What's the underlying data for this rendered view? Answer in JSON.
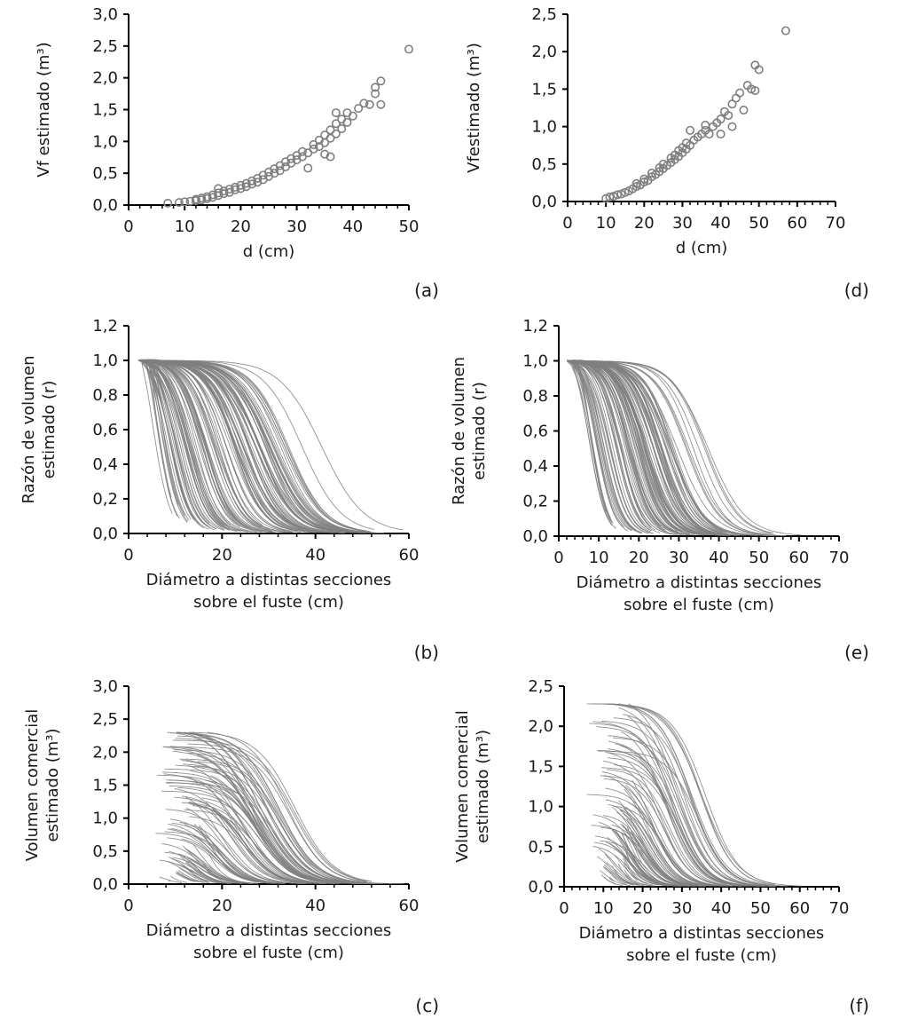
{
  "chart_data": [
    {
      "id": "a",
      "type": "scatter",
      "panel_label": "(a)",
      "xlabel": "d (cm)",
      "ylabel_lines": [
        "Vf estimado (m³)"
      ],
      "xlim": [
        0,
        50
      ],
      "ylim": [
        0,
        3.0
      ],
      "xticks": [
        "0",
        "10",
        "20",
        "30",
        "40",
        "50"
      ],
      "yticks": [
        "0,0",
        "0,5",
        "1,0",
        "1,5",
        "2,0",
        "2,5",
        "3,0"
      ],
      "points": [
        [
          7,
          0.03
        ],
        [
          9,
          0.04
        ],
        [
          10,
          0.05
        ],
        [
          11,
          0.06
        ],
        [
          12,
          0.07
        ],
        [
          12,
          0.09
        ],
        [
          13,
          0.08
        ],
        [
          13,
          0.11
        ],
        [
          14,
          0.1
        ],
        [
          14,
          0.13
        ],
        [
          15,
          0.12
        ],
        [
          15,
          0.16
        ],
        [
          16,
          0.15
        ],
        [
          16,
          0.19
        ],
        [
          16,
          0.26
        ],
        [
          17,
          0.18
        ],
        [
          17,
          0.22
        ],
        [
          18,
          0.2
        ],
        [
          18,
          0.25
        ],
        [
          19,
          0.24
        ],
        [
          19,
          0.28
        ],
        [
          20,
          0.26
        ],
        [
          20,
          0.31
        ],
        [
          21,
          0.29
        ],
        [
          21,
          0.34
        ],
        [
          22,
          0.33
        ],
        [
          22,
          0.38
        ],
        [
          23,
          0.36
        ],
        [
          23,
          0.42
        ],
        [
          24,
          0.4
        ],
        [
          24,
          0.47
        ],
        [
          25,
          0.45
        ],
        [
          25,
          0.52
        ],
        [
          26,
          0.5
        ],
        [
          26,
          0.57
        ],
        [
          27,
          0.54
        ],
        [
          27,
          0.62
        ],
        [
          28,
          0.6
        ],
        [
          28,
          0.68
        ],
        [
          29,
          0.66
        ],
        [
          29,
          0.73
        ],
        [
          30,
          0.71
        ],
        [
          30,
          0.78
        ],
        [
          31,
          0.76
        ],
        [
          31,
          0.84
        ],
        [
          32,
          0.58
        ],
        [
          32,
          0.82
        ],
        [
          33,
          0.88
        ],
        [
          33,
          0.95
        ],
        [
          34,
          0.92
        ],
        [
          34,
          1.02
        ],
        [
          35,
          0.98
        ],
        [
          35,
          1.1
        ],
        [
          35,
          0.8
        ],
        [
          36,
          1.05
        ],
        [
          36,
          1.18
        ],
        [
          36,
          0.76
        ],
        [
          37,
          1.12
        ],
        [
          37,
          1.28
        ],
        [
          37,
          1.45
        ],
        [
          38,
          1.2
        ],
        [
          38,
          1.35
        ],
        [
          39,
          1.3
        ],
        [
          39,
          1.45
        ],
        [
          40,
          1.4
        ],
        [
          41,
          1.52
        ],
        [
          42,
          1.6
        ],
        [
          43,
          1.58
        ],
        [
          44,
          1.75
        ],
        [
          44,
          1.85
        ],
        [
          45,
          1.58
        ],
        [
          45,
          1.95
        ],
        [
          50,
          2.45
        ]
      ]
    },
    {
      "id": "d",
      "type": "scatter",
      "panel_label": "(d)",
      "xlabel": "d (cm)",
      "ylabel_lines": [
        "Vfestimado (m³)"
      ],
      "xlim": [
        0,
        70
      ],
      "ylim": [
        0,
        2.5
      ],
      "xticks": [
        "0",
        "10",
        "20",
        "30",
        "40",
        "50",
        "60",
        "70"
      ],
      "yticks": [
        "0,0",
        "0,5",
        "1,0",
        "1,5",
        "2,0",
        "2,5"
      ],
      "points": [
        [
          10,
          0.04
        ],
        [
          11,
          0.06
        ],
        [
          12,
          0.07
        ],
        [
          13,
          0.09
        ],
        [
          14,
          0.1
        ],
        [
          15,
          0.12
        ],
        [
          16,
          0.14
        ],
        [
          17,
          0.17
        ],
        [
          18,
          0.2
        ],
        [
          18,
          0.24
        ],
        [
          19,
          0.22
        ],
        [
          20,
          0.26
        ],
        [
          20,
          0.3
        ],
        [
          21,
          0.28
        ],
        [
          22,
          0.33
        ],
        [
          22,
          0.38
        ],
        [
          23,
          0.36
        ],
        [
          24,
          0.4
        ],
        [
          24,
          0.45
        ],
        [
          25,
          0.44
        ],
        [
          25,
          0.5
        ],
        [
          26,
          0.48
        ],
        [
          27,
          0.52
        ],
        [
          27,
          0.58
        ],
        [
          28,
          0.56
        ],
        [
          28,
          0.62
        ],
        [
          29,
          0.6
        ],
        [
          29,
          0.68
        ],
        [
          30,
          0.65
        ],
        [
          30,
          0.72
        ],
        [
          31,
          0.7
        ],
        [
          31,
          0.78
        ],
        [
          32,
          0.75
        ],
        [
          32,
          0.95
        ],
        [
          33,
          0.82
        ],
        [
          34,
          0.86
        ],
        [
          35,
          0.9
        ],
        [
          36,
          0.95
        ],
        [
          36,
          1.02
        ],
        [
          37,
          0.9
        ],
        [
          38,
          1.0
        ],
        [
          39,
          1.05
        ],
        [
          40,
          1.1
        ],
        [
          40,
          0.9
        ],
        [
          41,
          1.2
        ],
        [
          42,
          1.15
        ],
        [
          43,
          1.3
        ],
        [
          43,
          1.0
        ],
        [
          44,
          1.38
        ],
        [
          45,
          1.45
        ],
        [
          46,
          1.22
        ],
        [
          47,
          1.55
        ],
        [
          48,
          1.5
        ],
        [
          49,
          1.82
        ],
        [
          49,
          1.48
        ],
        [
          50,
          1.76
        ],
        [
          57,
          2.28
        ]
      ]
    },
    {
      "id": "b",
      "type": "line",
      "panel_label": "(b)",
      "xlabel_lines": [
        "Diámetro a distintas secciones",
        "sobre el fuste (cm)"
      ],
      "ylabel_lines": [
        "Razón de volumen",
        "estimado (r)"
      ],
      "xlim": [
        0,
        60
      ],
      "ylim": [
        0,
        1.2
      ],
      "xticks": [
        "0",
        "20",
        "40",
        "60"
      ],
      "yticks": [
        "0,0",
        "0,2",
        "0,4",
        "0,6",
        "0,8",
        "1,0",
        "1,2"
      ],
      "n_curves": 130,
      "d_range": [
        8,
        58
      ]
    },
    {
      "id": "e",
      "type": "line",
      "panel_label": "(e)",
      "xlabel_lines": [
        "Diámetro a distintas secciones",
        "sobre el fuste (cm)"
      ],
      "ylabel_lines": [
        "Razón de volumen",
        "estimado (r)"
      ],
      "xlim": [
        0,
        70
      ],
      "ylim": [
        0,
        1.2
      ],
      "xticks": [
        "0",
        "10",
        "20",
        "30",
        "40",
        "50",
        "60",
        "70"
      ],
      "yticks": [
        "0,0",
        "0,2",
        "0,4",
        "0,6",
        "0,8",
        "1,0",
        "1,2"
      ],
      "n_curves": 110,
      "d_range": [
        10,
        60
      ]
    },
    {
      "id": "c",
      "type": "line",
      "panel_label": "(c)",
      "xlabel_lines": [
        "Diámetro a distintas secciones",
        "sobre el fuste (cm)"
      ],
      "ylabel_lines": [
        "Volumen comercial",
        "estimado (m³)"
      ],
      "xlim": [
        0,
        60
      ],
      "ylim": [
        0,
        3.0
      ],
      "xticks": [
        "0",
        "20",
        "40",
        "60"
      ],
      "yticks": [
        "0,0",
        "0,5",
        "1,0",
        "1,5",
        "2,0",
        "2,5",
        "3,0"
      ],
      "n_curves": 130,
      "d_range": [
        8,
        58
      ],
      "vmax": 2.3
    },
    {
      "id": "f",
      "type": "line",
      "panel_label": "(f)",
      "xlabel_lines": [
        "Diámetro a distintas secciones",
        "sobre el fuste (cm)"
      ],
      "ylabel_lines": [
        "Volumen comercial",
        "estimado (m³)"
      ],
      "xlim": [
        0,
        70
      ],
      "ylim": [
        0,
        2.5
      ],
      "xticks": [
        "0",
        "10",
        "20",
        "30",
        "40",
        "50",
        "60",
        "70"
      ],
      "yticks": [
        "0,0",
        "0,5",
        "1,0",
        "1,5",
        "2,0",
        "2,5"
      ],
      "n_curves": 110,
      "d_range": [
        10,
        60
      ],
      "vmax": 2.28
    }
  ]
}
